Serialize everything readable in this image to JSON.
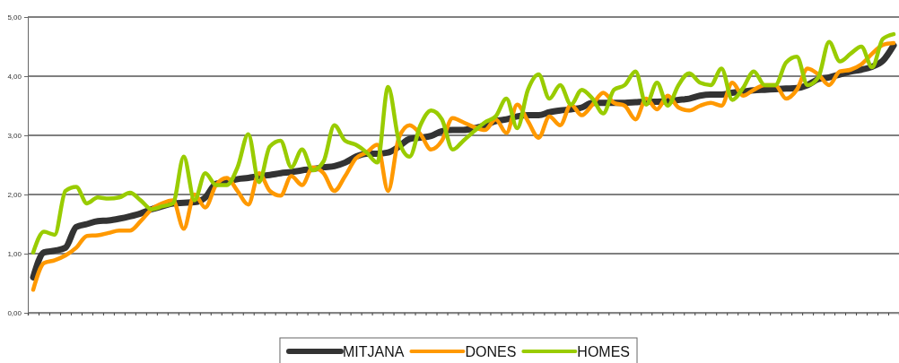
{
  "chart_data": {
    "type": "line",
    "categories": [
      null,
      null,
      null,
      null,
      null,
      null,
      null,
      null,
      null,
      null,
      null,
      null,
      null,
      null,
      null,
      null,
      null,
      null,
      null,
      null,
      null,
      null,
      null,
      null,
      null,
      null,
      null,
      null,
      null,
      null,
      null,
      null,
      null,
      null,
      null,
      null,
      null,
      null,
      null,
      null,
      null,
      null,
      null,
      null,
      null,
      null,
      null,
      null,
      null,
      null,
      null,
      null,
      null,
      null,
      null,
      null,
      null,
      null,
      null,
      null,
      null,
      null,
      null,
      null,
      null,
      null,
      null,
      null,
      null,
      null,
      null,
      null,
      null,
      null,
      null,
      null,
      null,
      null,
      null,
      null,
      null
    ],
    "ylim": [
      0,
      5
    ],
    "yticks": [
      {
        "value": 0,
        "label": "0,00"
      },
      {
        "value": 1,
        "label": "1,00"
      },
      {
        "value": 2,
        "label": "2,00"
      },
      {
        "value": 3,
        "label": "3,00"
      },
      {
        "value": 4,
        "label": "4,00"
      },
      {
        "value": 5,
        "label": "5,00"
      }
    ],
    "grid": "y",
    "legend": "bottom",
    "marker": "none",
    "line_style": "solid",
    "series": [
      {
        "name": "MITJANA",
        "color": "#333333",
        "values": [
          0.6,
          1.02,
          1.05,
          1.1,
          1.45,
          1.5,
          1.55,
          1.56,
          1.59,
          1.63,
          1.68,
          1.75,
          1.8,
          1.85,
          1.86,
          1.87,
          1.95,
          2.18,
          2.21,
          2.26,
          2.28,
          2.31,
          2.33,
          2.36,
          2.38,
          2.41,
          2.43,
          2.46,
          2.48,
          2.54,
          2.64,
          2.69,
          2.69,
          2.71,
          2.81,
          2.94,
          2.96,
          2.99,
          3.07,
          3.09,
          3.09,
          3.12,
          3.17,
          3.24,
          3.27,
          3.32,
          3.34,
          3.34,
          3.39,
          3.42,
          3.44,
          3.47,
          3.55,
          3.55,
          3.55,
          3.55,
          3.56,
          3.57,
          3.57,
          3.58,
          3.6,
          3.62,
          3.67,
          3.69,
          3.69,
          3.72,
          3.74,
          3.76,
          3.77,
          3.78,
          3.79,
          3.8,
          3.85,
          3.95,
          3.98,
          4.03,
          4.08,
          4.11,
          4.16,
          4.26,
          4.52
        ]
      },
      {
        "name": "DONES",
        "color": "#ff9900",
        "values": [
          0.39,
          0.84,
          0.89,
          0.97,
          1.1,
          1.3,
          1.31,
          1.35,
          1.39,
          1.39,
          1.55,
          1.75,
          1.85,
          1.9,
          1.42,
          2.0,
          1.78,
          2.16,
          2.28,
          2.06,
          1.83,
          2.36,
          2.06,
          1.98,
          2.31,
          2.16,
          2.46,
          2.36,
          2.06,
          2.31,
          2.61,
          2.71,
          2.84,
          2.06,
          2.96,
          3.17,
          3.02,
          2.76,
          2.91,
          3.29,
          3.22,
          3.14,
          3.09,
          3.27,
          3.04,
          3.52,
          3.24,
          2.96,
          3.32,
          3.17,
          3.52,
          3.34,
          3.52,
          3.72,
          3.55,
          3.5,
          3.27,
          3.62,
          3.44,
          3.67,
          3.47,
          3.42,
          3.5,
          3.55,
          3.5,
          3.89,
          3.67,
          3.77,
          3.85,
          3.85,
          3.62,
          3.77,
          4.13,
          4.03,
          3.85,
          4.08,
          4.11,
          4.2,
          4.38,
          4.53,
          4.56
        ]
      },
      {
        "name": "HOMES",
        "color": "#99cc00",
        "values": [
          1.02,
          1.37,
          1.32,
          2.06,
          2.13,
          1.85,
          1.95,
          1.93,
          1.95,
          2.03,
          1.9,
          1.75,
          1.8,
          1.85,
          2.64,
          1.9,
          2.36,
          2.16,
          2.16,
          2.46,
          3.02,
          2.21,
          2.81,
          2.91,
          2.46,
          2.76,
          2.41,
          2.56,
          3.17,
          2.91,
          2.84,
          2.71,
          2.54,
          3.82,
          2.91,
          2.64,
          3.17,
          3.42,
          3.27,
          2.76,
          2.91,
          3.07,
          3.22,
          3.32,
          3.62,
          3.12,
          3.77,
          4.03,
          3.62,
          3.85,
          3.52,
          3.77,
          3.62,
          3.37,
          3.77,
          3.85,
          4.08,
          3.52,
          3.89,
          3.5,
          3.85,
          4.05,
          3.89,
          3.85,
          4.13,
          3.6,
          3.8,
          4.08,
          3.85,
          3.85,
          4.23,
          4.33,
          3.85,
          3.98,
          4.58,
          4.25,
          4.38,
          4.5,
          4.15,
          4.63,
          4.71
        ]
      }
    ]
  }
}
